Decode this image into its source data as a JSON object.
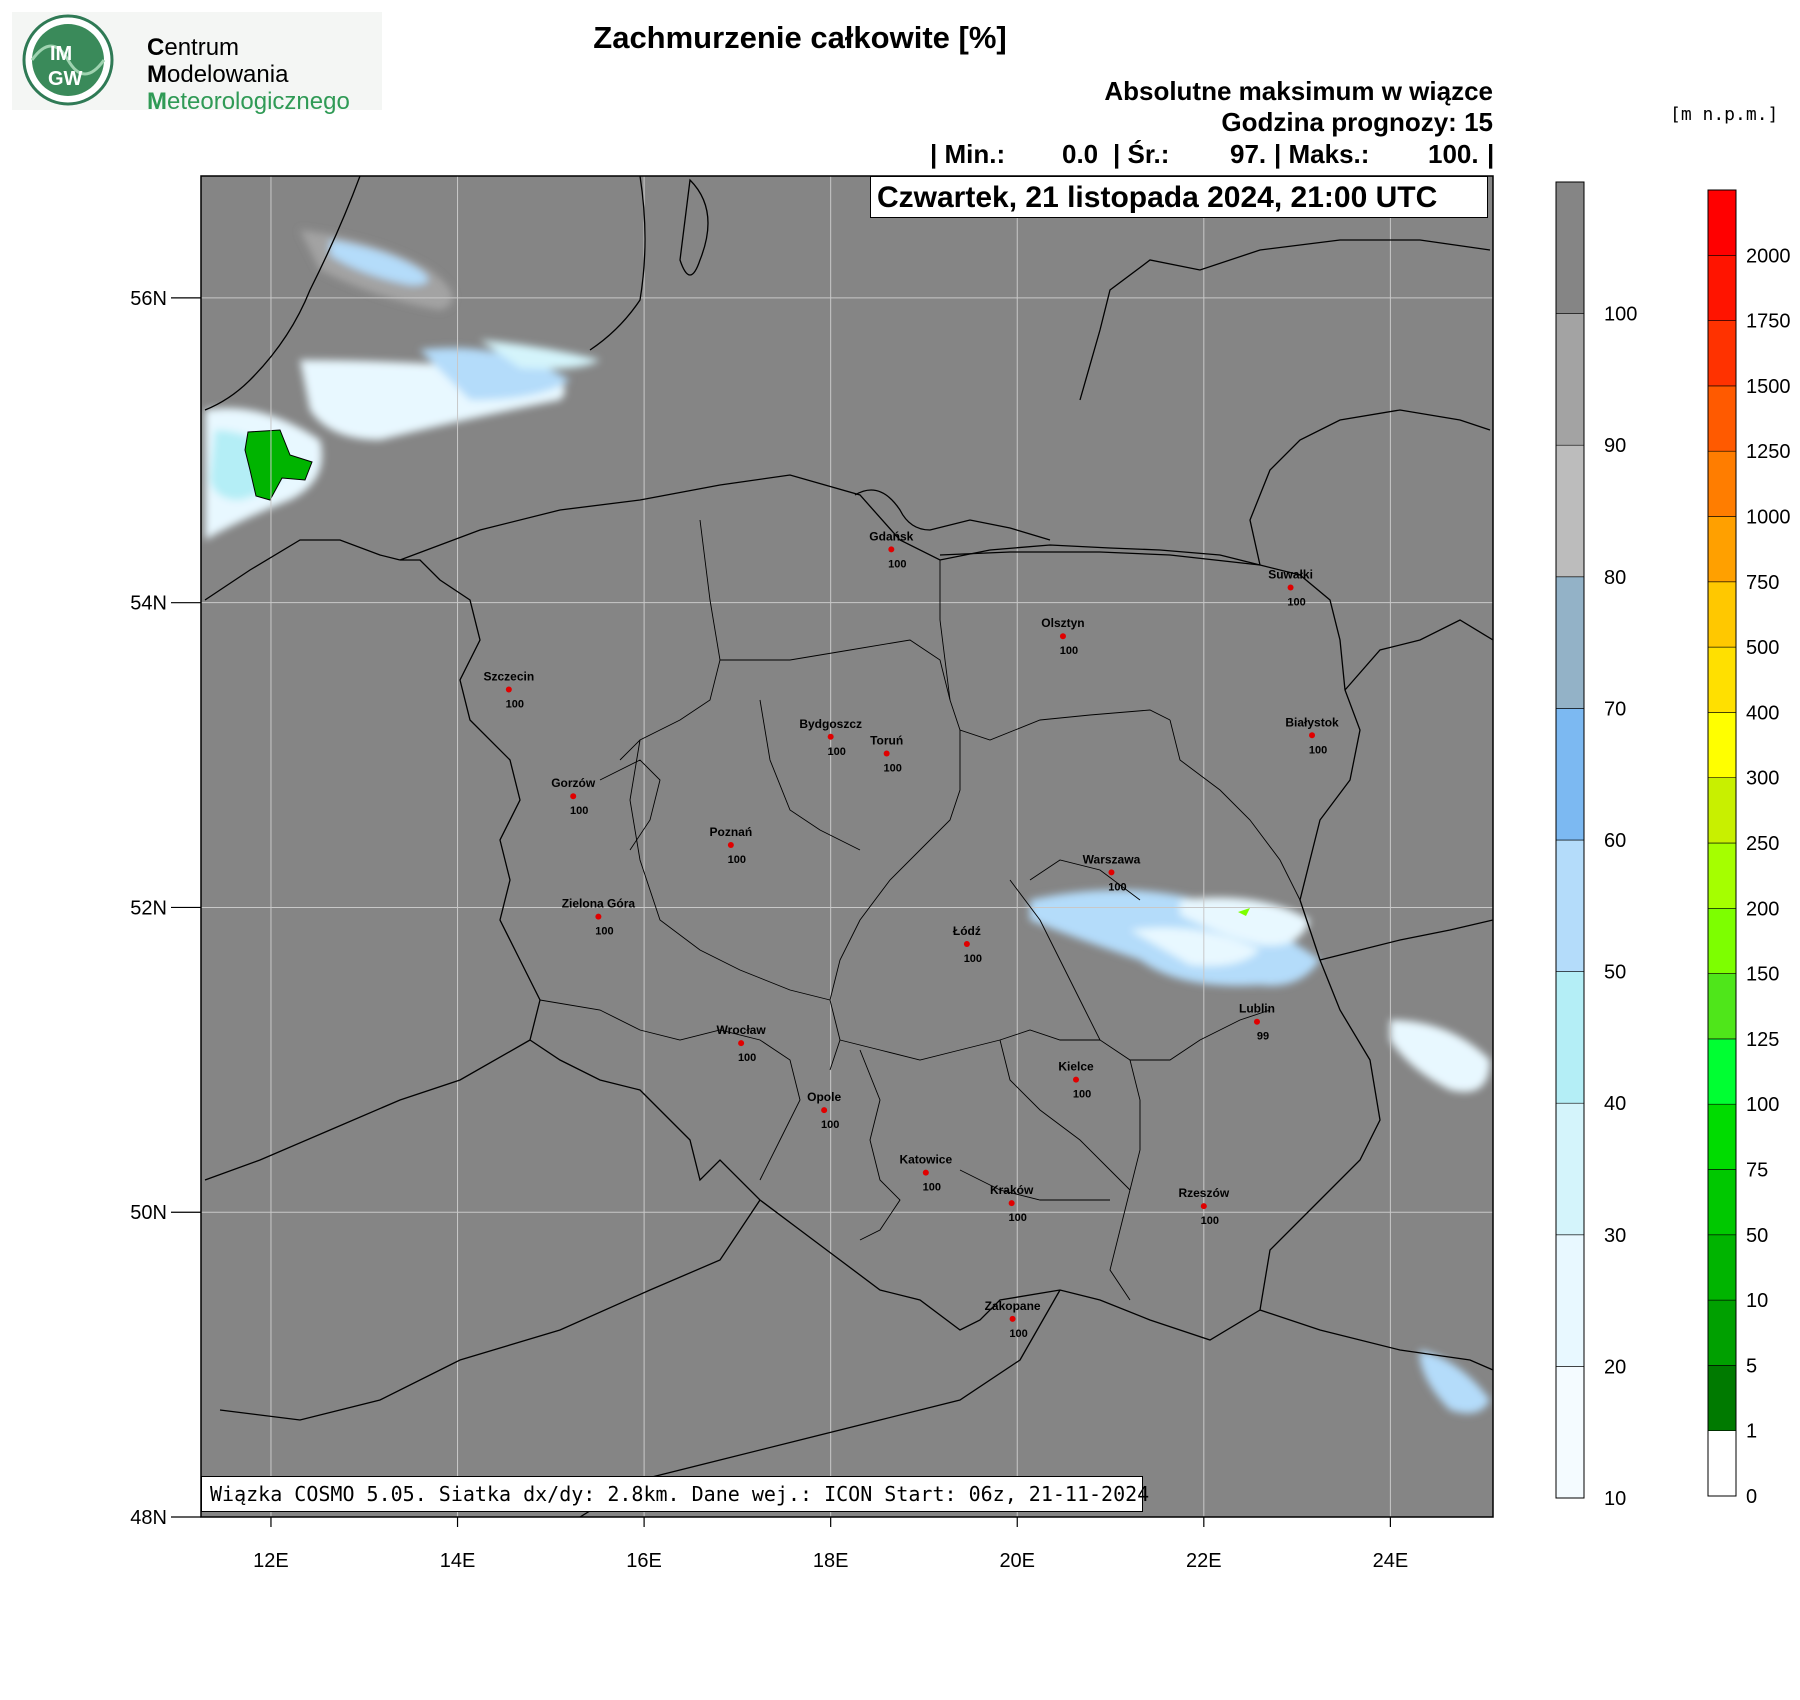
{
  "logo": {
    "emblem_text_top": "IM",
    "emblem_text_bottom": "GW",
    "line1_initial": "C",
    "line1_rest": "entrum",
    "line2_initial": "M",
    "line2_rest": "odelowania",
    "line3_initial": "M",
    "line3_rest": "eteorologicznego",
    "accent_color": "#2f9a55"
  },
  "title": "Zachmurzenie całkowite [%]",
  "subtitle1": "Absolutne maksimum w wiązce",
  "subtitle2": "Godzina prognozy: 15",
  "stats": {
    "min_label": "| Min.:",
    "min_value": "0.0",
    "avg_label": "| Śr.:",
    "avg_value": "97.",
    "max_label": "| Maks.:",
    "max_value": "100.",
    "end_bar": "|"
  },
  "date_label": "Czwartek, 21 listopada 2024, 21:00 UTC",
  "footer_text": "Wiązka COSMO 5.05. Siatka dx/dy: 2.8km. Dane wej.: ICON Start: 06z, 21-11-2024",
  "terrain_unit": "[m n.p.m.]",
  "axes": {
    "lat_labels": [
      "56N",
      "54N",
      "52N",
      "50N",
      "48N"
    ],
    "lon_labels": [
      "12E",
      "14E",
      "16E",
      "18E",
      "20E",
      "22E",
      "24E"
    ],
    "lat_values": [
      56,
      54,
      52,
      50,
      48
    ],
    "lon_values": [
      12,
      14,
      16,
      18,
      20,
      22,
      24
    ],
    "lat_range": [
      48,
      56.8
    ],
    "lon_range": [
      11.25,
      25.1
    ]
  },
  "cloud_scale": {
    "labels": [
      "10",
      "20",
      "30",
      "40",
      "50",
      "60",
      "70",
      "80",
      "90",
      "100"
    ],
    "colors": [
      "#f4fbff",
      "#e8f8ff",
      "#d4f4fb",
      "#b4eef6",
      "#b4dcfa",
      "#7cb9f2",
      "#93b2c7",
      "#bcbcbc",
      "#a3a3a3",
      "#858585"
    ]
  },
  "terrain_scale": {
    "labels": [
      "0",
      "1",
      "5",
      "10",
      "50",
      "75",
      "100",
      "125",
      "150",
      "200",
      "250",
      "300",
      "400",
      "500",
      "750",
      "1000",
      "1250",
      "1500",
      "1750",
      "2000"
    ],
    "colors": [
      "#ffffff",
      "#007a00",
      "#00a000",
      "#00b400",
      "#00c800",
      "#00dc00",
      "#00ff32",
      "#4fe61a",
      "#7dff00",
      "#a5ff00",
      "#c8f000",
      "#ffff00",
      "#ffe000",
      "#ffc800",
      "#ffa000",
      "#ff7d00",
      "#ff5a00",
      "#ff3200",
      "#ff1400",
      "#ff0000"
    ]
  },
  "cities": [
    {
      "name": "Gdańsk",
      "value": "100",
      "lat": 54.35,
      "lon": 18.65
    },
    {
      "name": "Suwałki",
      "value": "100",
      "lat": 54.1,
      "lon": 22.93
    },
    {
      "name": "Olsztyn",
      "value": "100",
      "lat": 53.78,
      "lon": 20.49
    },
    {
      "name": "Szczecin",
      "value": "100",
      "lat": 53.43,
      "lon": 14.55
    },
    {
      "name": "Białystok",
      "value": "100",
      "lat": 53.13,
      "lon": 23.16
    },
    {
      "name": "Bydgoszcz",
      "value": "100",
      "lat": 53.12,
      "lon": 18.0
    },
    {
      "name": "Toruń",
      "value": "100",
      "lat": 53.01,
      "lon": 18.6
    },
    {
      "name": "Gorzów",
      "value": "100",
      "lat": 52.73,
      "lon": 15.24
    },
    {
      "name": "Poznań",
      "value": "100",
      "lat": 52.41,
      "lon": 16.93
    },
    {
      "name": "Warszawa",
      "value": "100",
      "lat": 52.23,
      "lon": 21.01
    },
    {
      "name": "Zielona Góra",
      "value": "100",
      "lat": 51.94,
      "lon": 15.51
    },
    {
      "name": "Łódź",
      "value": "100",
      "lat": 51.76,
      "lon": 19.46
    },
    {
      "name": "Lublin",
      "value": "99",
      "lat": 51.25,
      "lon": 22.57
    },
    {
      "name": "Wrocław",
      "value": "100",
      "lat": 51.11,
      "lon": 17.04
    },
    {
      "name": "Kielce",
      "value": "100",
      "lat": 50.87,
      "lon": 20.63
    },
    {
      "name": "Opole",
      "value": "100",
      "lat": 50.67,
      "lon": 17.93
    },
    {
      "name": "Katowice",
      "value": "100",
      "lat": 50.26,
      "lon": 19.02
    },
    {
      "name": "Kraków",
      "value": "100",
      "lat": 50.06,
      "lon": 19.94
    },
    {
      "name": "Rzeszów",
      "value": "100",
      "lat": 50.04,
      "lon": 22.0
    },
    {
      "name": "Zakopane",
      "value": "100",
      "lat": 49.3,
      "lon": 19.95
    }
  ],
  "colors": {
    "map_background": "#858585",
    "city_dot": "#e00000",
    "grid": "#c8c8c8",
    "border": "#000000"
  }
}
